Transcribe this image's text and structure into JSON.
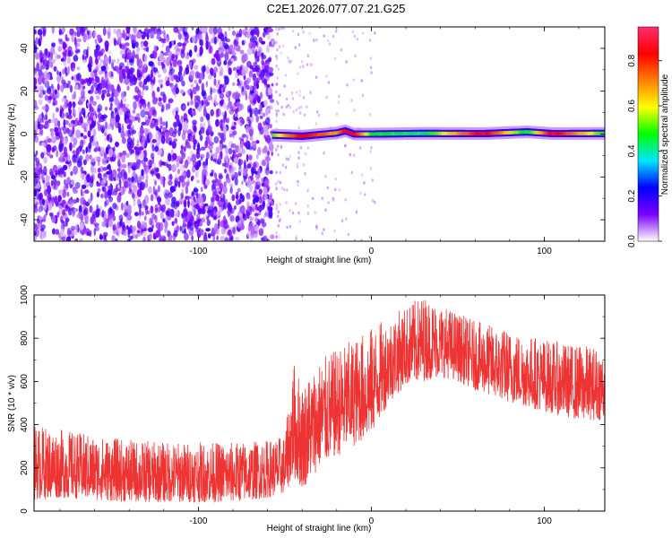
{
  "title": "C2E1.2026.077.07.21.G25",
  "chart_data": [
    {
      "type": "heatmap",
      "title": "",
      "xlabel": "Height of straight line (km)",
      "ylabel": "Frequency (Hz)",
      "xlim": [
        -195,
        135
      ],
      "ylim": [
        -50,
        50
      ],
      "x_ticks": [
        -100,
        0,
        100
      ],
      "x_tick_labels": [
        "-100",
        "0",
        "100"
      ],
      "y_ticks": [
        -40,
        -20,
        0,
        20,
        40
      ],
      "y_tick_labels": [
        "-40",
        "-20",
        "0",
        "20",
        "40"
      ],
      "noise_region_x": [
        -195,
        -57
      ],
      "signal_line": [
        {
          "x": -57,
          "y": -0.5,
          "amplitude": 0.55
        },
        {
          "x": -40,
          "y": -1.0,
          "amplitude": 0.9
        },
        {
          "x": -20,
          "y": 0.5,
          "amplitude": 0.7
        },
        {
          "x": -15,
          "y": 1.5,
          "amplitude": 0.9
        },
        {
          "x": -10,
          "y": 0.0,
          "amplitude": 0.9
        },
        {
          "x": 0,
          "y": 0.0,
          "amplitude": 0.5
        },
        {
          "x": 30,
          "y": 0.3,
          "amplitude": 0.45
        },
        {
          "x": 65,
          "y": 0.2,
          "amplitude": 0.92
        },
        {
          "x": 90,
          "y": 1.0,
          "amplitude": 0.45
        },
        {
          "x": 105,
          "y": 0.2,
          "amplitude": 0.92
        },
        {
          "x": 135,
          "y": 0.3,
          "amplitude": 0.5
        }
      ],
      "colorbar": {
        "label": "Normalized spectral amplitude",
        "range": [
          0.0,
          0.95
        ],
        "ticks": [
          0.0,
          0.2,
          0.4,
          0.6,
          0.8
        ],
        "tick_labels": [
          "0.0",
          "0.2",
          "0.4",
          "0.6",
          "0.8"
        ],
        "colors": [
          "#ffffff",
          "#7b00ff",
          "#0000ff",
          "#00e5ff",
          "#00ff00",
          "#ffff00",
          "#ff8000",
          "#ff0000",
          "#ff2d6e"
        ]
      }
    },
    {
      "type": "line",
      "title": "",
      "xlabel": "Height of straight line (km)",
      "ylabel": "SNR (10 * v/v)",
      "xlim": [
        -195,
        135
      ],
      "ylim": [
        0,
        1000
      ],
      "x_ticks": [
        -100,
        0,
        100
      ],
      "x_tick_labels": [
        "-100",
        "0",
        "100"
      ],
      "y_ticks": [
        0,
        200,
        400,
        600,
        800,
        1000
      ],
      "y_tick_labels": [
        "0",
        "200",
        "400",
        "600",
        "800",
        "1000"
      ],
      "series": [
        {
          "color": "#ee3333",
          "x": [
            -195,
            -180,
            -160,
            -140,
            -120,
            -100,
            -80,
            -60,
            -50,
            -45,
            -40,
            -30,
            -20,
            -10,
            0,
            10,
            20,
            30,
            40,
            50,
            60,
            70,
            80,
            90,
            100,
            110,
            120,
            135
          ],
          "low": [
            50,
            60,
            50,
            40,
            40,
            40,
            40,
            60,
            80,
            150,
            100,
            200,
            250,
            300,
            350,
            500,
            580,
            600,
            620,
            600,
            560,
            530,
            500,
            480,
            460,
            440,
            420,
            420
          ],
          "high": [
            400,
            380,
            350,
            330,
            320,
            320,
            320,
            330,
            350,
            700,
            600,
            700,
            750,
            800,
            850,
            900,
            950,
            1000,
            960,
            920,
            880,
            860,
            840,
            820,
            800,
            780,
            770,
            760
          ]
        }
      ]
    }
  ]
}
